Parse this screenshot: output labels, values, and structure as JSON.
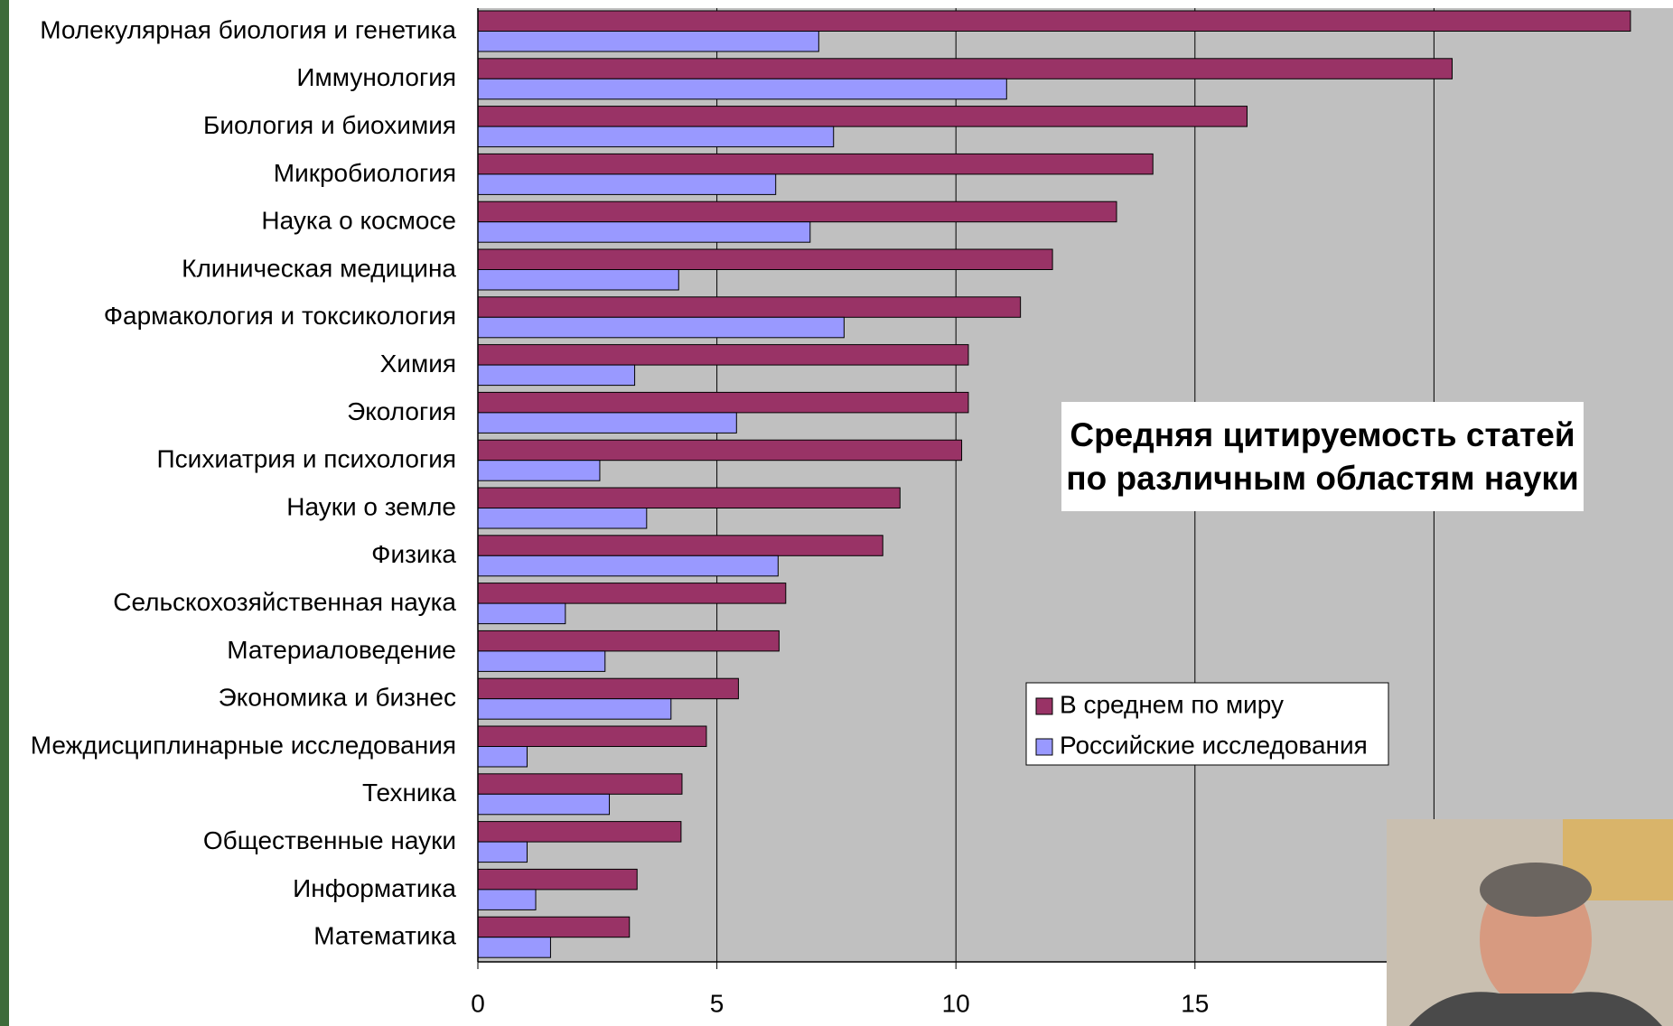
{
  "chart_data": {
    "type": "bar",
    "orientation": "horizontal",
    "title": "Средняя цитируемость статей по различным областям науки",
    "categories": [
      "Молекулярная биология и генетика",
      "Иммунология",
      "Биология и биохимия",
      "Микробиология",
      "Наука о космосе",
      "Клиническая медицина",
      "Фармакология и токсикология",
      "Химия",
      "Экология",
      "Психиатрия и психология",
      "Науки о земле",
      "Физика",
      "Сельскохозяйственная наука",
      "Материаловедение",
      "Экономика и бизнес",
      "Междисциплинарные исследования",
      "Техника",
      "Общественные науки",
      "Информатика",
      "Математика"
    ],
    "series": [
      {
        "name": "В среднем по миру",
        "color": "#993366",
        "values": [
          24.11,
          20.38,
          16.09,
          14.12,
          13.36,
          12.02,
          11.35,
          10.26,
          10.26,
          10.12,
          8.83,
          8.47,
          6.44,
          6.3,
          5.45,
          4.78,
          4.27,
          4.25,
          3.33,
          3.17
        ]
      },
      {
        "name": "Российские исследования",
        "color": "#9999ff",
        "values": [
          7.13,
          11.06,
          7.44,
          6.23,
          6.95,
          4.2,
          7.66,
          3.28,
          5.41,
          2.55,
          3.53,
          6.28,
          1.83,
          2.66,
          4.04,
          1.03,
          2.75,
          1.03,
          1.21,
          1.52
        ]
      }
    ],
    "xlim": [
      0,
      25
    ],
    "xticks": [
      0,
      5,
      10,
      15,
      20
    ],
    "grid": true,
    "legend": "right"
  }
}
